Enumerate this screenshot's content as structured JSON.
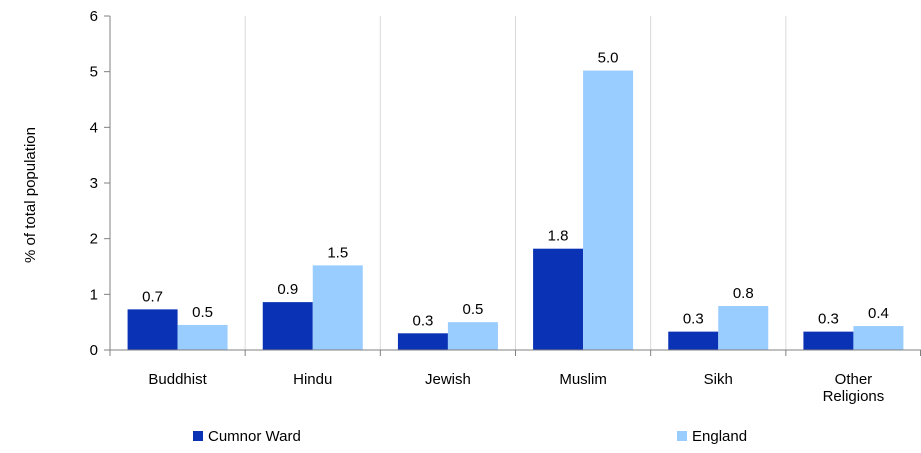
{
  "chart_data": {
    "type": "bar",
    "title": "",
    "xlabel": "",
    "ylabel": "% of total population",
    "ylim": [
      0,
      6
    ],
    "yticks": [
      0,
      1,
      2,
      3,
      4,
      5,
      6
    ],
    "grid": "vertical category separators",
    "legend_position": "bottom",
    "categories": [
      [
        "Buddhist"
      ],
      [
        "Hindu"
      ],
      [
        "Jewish"
      ],
      [
        "Muslim"
      ],
      [
        "Sikh"
      ],
      [
        "Other",
        "Religions"
      ]
    ],
    "series": [
      {
        "name": "Cumnor Ward",
        "color": "#0a32b4",
        "values": [
          0.73,
          0.86,
          0.3,
          1.82,
          0.33,
          0.33
        ],
        "labels": [
          "0.7",
          "0.9",
          "0.3",
          "1.8",
          "0.3",
          "0.3"
        ]
      },
      {
        "name": "England",
        "color": "#99ccff",
        "values": [
          0.45,
          1.52,
          0.5,
          5.02,
          0.79,
          0.43
        ],
        "labels": [
          "0.5",
          "1.5",
          "0.5",
          "5.0",
          "0.8",
          "0.4"
        ]
      }
    ]
  }
}
